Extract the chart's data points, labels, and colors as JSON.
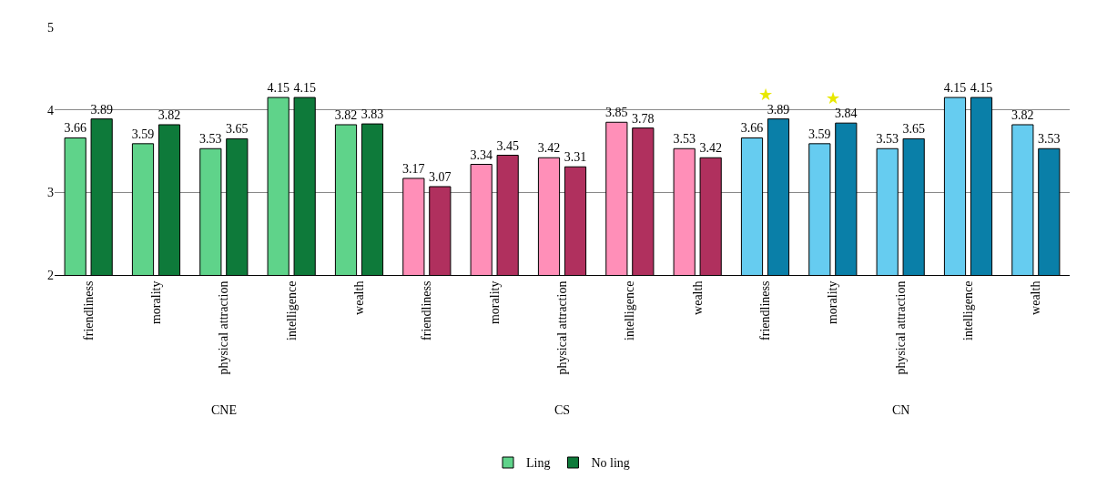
{
  "chart_data": {
    "type": "bar",
    "categories": [
      "friendliness",
      "morality",
      "physical attraction",
      "intelligence",
      "wealth",
      "friendliness",
      "morality",
      "physical attraction",
      "intelligence",
      "wealth",
      "friendliness",
      "morality",
      "physical attraction",
      "intelligence",
      "wealth"
    ],
    "series": [
      {
        "name": "Ling",
        "colors": [
          "#5fd38a",
          "#5fd38a",
          "#5fd38a",
          "#5fd38a",
          "#5fd38a",
          "#ff8fb8",
          "#ff8fb8",
          "#ff8fb8",
          "#ff8fb8",
          "#ff8fb8",
          "#66ccf0",
          "#66ccf0",
          "#66ccf0",
          "#66ccf0",
          "#66ccf0"
        ],
        "values": [
          3.66,
          3.59,
          3.53,
          4.15,
          3.82,
          3.17,
          3.34,
          3.42,
          3.85,
          3.53,
          3.66,
          3.59,
          3.53,
          4.15,
          3.82
        ]
      },
      {
        "name": "No ling",
        "colors": [
          "#0e7a3a",
          "#0e7a3a",
          "#0e7a3a",
          "#0e7a3a",
          "#0e7a3a",
          "#b0305e",
          "#b0305e",
          "#b0305e",
          "#b0305e",
          "#b0305e",
          "#0a7fa8",
          "#0a7fa8",
          "#0a7fa8",
          "#0a7fa8",
          "#0a7fa8"
        ],
        "values": [
          3.89,
          3.82,
          3.65,
          4.15,
          3.83,
          3.07,
          3.45,
          3.31,
          3.78,
          3.42,
          3.89,
          3.84,
          3.65,
          4.15,
          3.53
        ]
      }
    ],
    "ylim": [
      2,
      5
    ],
    "yticks": [
      2,
      3,
      4,
      5
    ],
    "grid": "y",
    "data_labels": true,
    "legend": "bottom",
    "annotations": [
      "CNE",
      "CS",
      "CN",
      "★",
      "★"
    ]
  }
}
